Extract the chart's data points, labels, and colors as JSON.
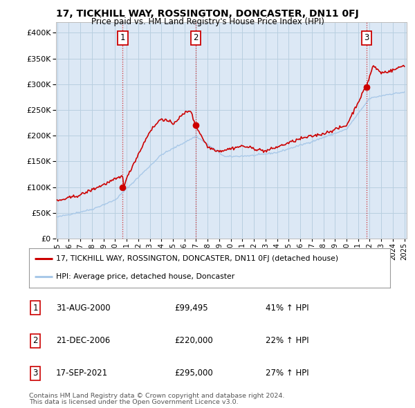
{
  "title": "17, TICKHILL WAY, ROSSINGTON, DONCASTER, DN11 0FJ",
  "subtitle": "Price paid vs. HM Land Registry's House Price Index (HPI)",
  "property_label": "17, TICKHILL WAY, ROSSINGTON, DONCASTER, DN11 0FJ (detached house)",
  "hpi_label": "HPI: Average price, detached house, Doncaster",
  "transactions": [
    {
      "num": 1,
      "date": "31-AUG-2000",
      "price": "£99,495",
      "pct": "41% ↑ HPI"
    },
    {
      "num": 2,
      "date": "21-DEC-2006",
      "price": "£220,000",
      "pct": "22% ↑ HPI"
    },
    {
      "num": 3,
      "date": "17-SEP-2021",
      "price": "£295,000",
      "pct": "27% ↑ HPI"
    }
  ],
  "footnote1": "Contains HM Land Registry data © Crown copyright and database right 2024.",
  "footnote2": "This data is licensed under the Open Government Licence v3.0.",
  "property_color": "#cc0000",
  "hpi_color": "#a8c8e8",
  "plot_bg_color": "#dce8f5",
  "background_color": "#ffffff",
  "grid_color": "#b8cfe0",
  "ylim": [
    0,
    420000
  ],
  "yticks": [
    0,
    50000,
    100000,
    150000,
    200000,
    250000,
    300000,
    350000,
    400000
  ],
  "x_start_year": 1995,
  "x_end_year": 2025,
  "sale_years": [
    2000.667,
    2006.96,
    2021.71
  ],
  "sale_prices": [
    99495,
    220000,
    295000
  ]
}
